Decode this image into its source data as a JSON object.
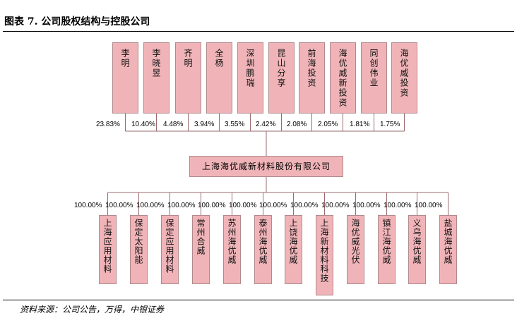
{
  "title": "图表 7. 公司股权结构与控股公司",
  "company": "上海海优威新材料股份有限公司",
  "shareholders": [
    {
      "name": "李明",
      "pct": "23.83%"
    },
    {
      "name": "李晓昱",
      "pct": "10.40%"
    },
    {
      "name": "齐明",
      "pct": "4.48%"
    },
    {
      "name": "全杨",
      "pct": "3.94%"
    },
    {
      "name": "深圳鹏瑞",
      "pct": "3.55%"
    },
    {
      "name": "昆山分享",
      "pct": "2.42%"
    },
    {
      "name": "前海投资",
      "pct": "2.08%"
    },
    {
      "name": "海优威新投资",
      "pct": "2.05%"
    },
    {
      "name": "同创伟业",
      "pct": "1.81%"
    },
    {
      "name": "海优威投资",
      "pct": "1.75%"
    }
  ],
  "subsidiaries": [
    {
      "name": "上海应用材料",
      "pct": "100.00%"
    },
    {
      "name": "保定太阳能",
      "pct": "100.00%"
    },
    {
      "name": "保定应用材料",
      "pct": "100.00%"
    },
    {
      "name": "常州合威",
      "pct": "100.00%"
    },
    {
      "name": "苏州海优威",
      "pct": "100.00%"
    },
    {
      "name": "泰州海优威",
      "pct": "100.00%"
    },
    {
      "name": "上饶海优威",
      "pct": "100.00%"
    },
    {
      "name": "上海新材料科技",
      "pct": "100.00%"
    },
    {
      "name": "海优威光伏",
      "pct": "100.00%"
    },
    {
      "name": "镇江海优威",
      "pct": "100.00%"
    },
    {
      "name": "义乌海优威",
      "pct": "100.00%"
    },
    {
      "name": "盐城海优威",
      "pct": "100.00%"
    }
  ],
  "source": "资料来源：公司公告，万得，中银证券"
}
